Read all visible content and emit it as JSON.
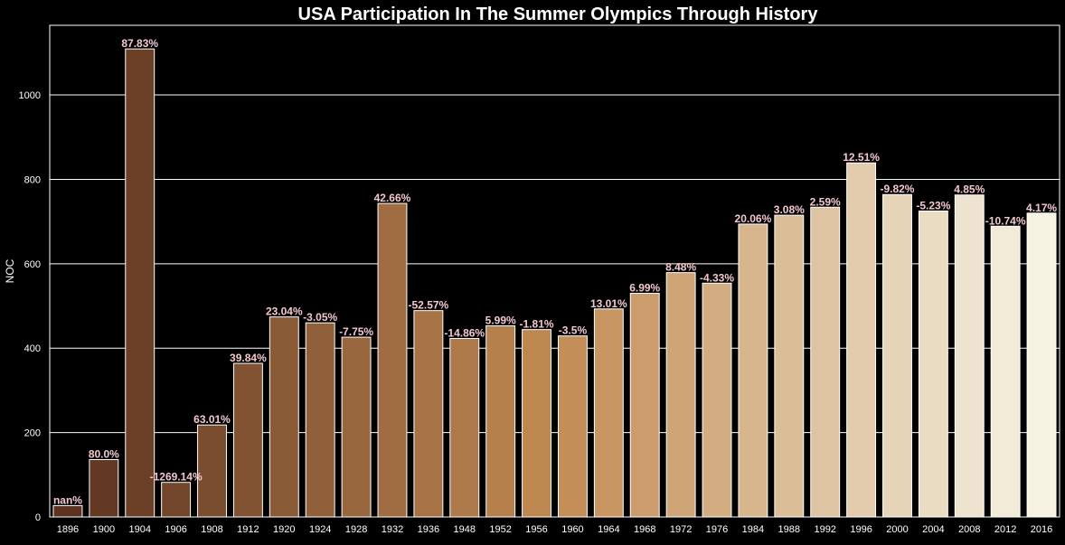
{
  "chart_data": {
    "type": "bar",
    "title": "USA Participation In The Summer Olympics Through History",
    "xlabel": "",
    "ylabel": "NOC",
    "ylim": [
      0,
      1165
    ],
    "yticks": [
      0,
      200,
      400,
      600,
      800,
      1000
    ],
    "grid": true,
    "categories": [
      "1896",
      "1900",
      "1904",
      "1906",
      "1908",
      "1912",
      "1920",
      "1924",
      "1928",
      "1932",
      "1936",
      "1948",
      "1952",
      "1956",
      "1960",
      "1964",
      "1968",
      "1972",
      "1976",
      "1984",
      "1988",
      "1992",
      "1996",
      "2000",
      "2004",
      "2008",
      "2012",
      "2016"
    ],
    "values": [
      27,
      136,
      1109,
      82,
      218,
      364,
      474,
      460,
      426,
      743,
      489,
      423,
      453,
      444,
      429,
      493,
      530,
      579,
      554,
      694,
      715,
      734,
      839,
      764,
      725,
      763,
      689,
      720
    ],
    "data_labels": [
      "nan%",
      "80.0%",
      "87.83%",
      "-1269.14%",
      "63.01%",
      "39.84%",
      "23.04%",
      "-3.05%",
      "-7.75%",
      "42.66%",
      "-52.57%",
      "-14.86%",
      "5.99%",
      "-1.81%",
      "-3.5%",
      "13.01%",
      "6.99%",
      "8.48%",
      "-4.33%",
      "20.06%",
      "3.08%",
      "2.59%",
      "12.51%",
      "-9.82%",
      "-5.23%",
      "4.85%",
      "-10.74%",
      "4.17%"
    ],
    "colors": {
      "background": "#000000",
      "grid": "#ffffff",
      "axis_text": "#ffffff",
      "title": "#ffffff",
      "data_label": "#f4c7cf",
      "bar_edge": "#ffffff",
      "palette_start": "#5c3320",
      "palette_mid": "#c18a52",
      "palette_end": "#f6f3e3"
    }
  }
}
